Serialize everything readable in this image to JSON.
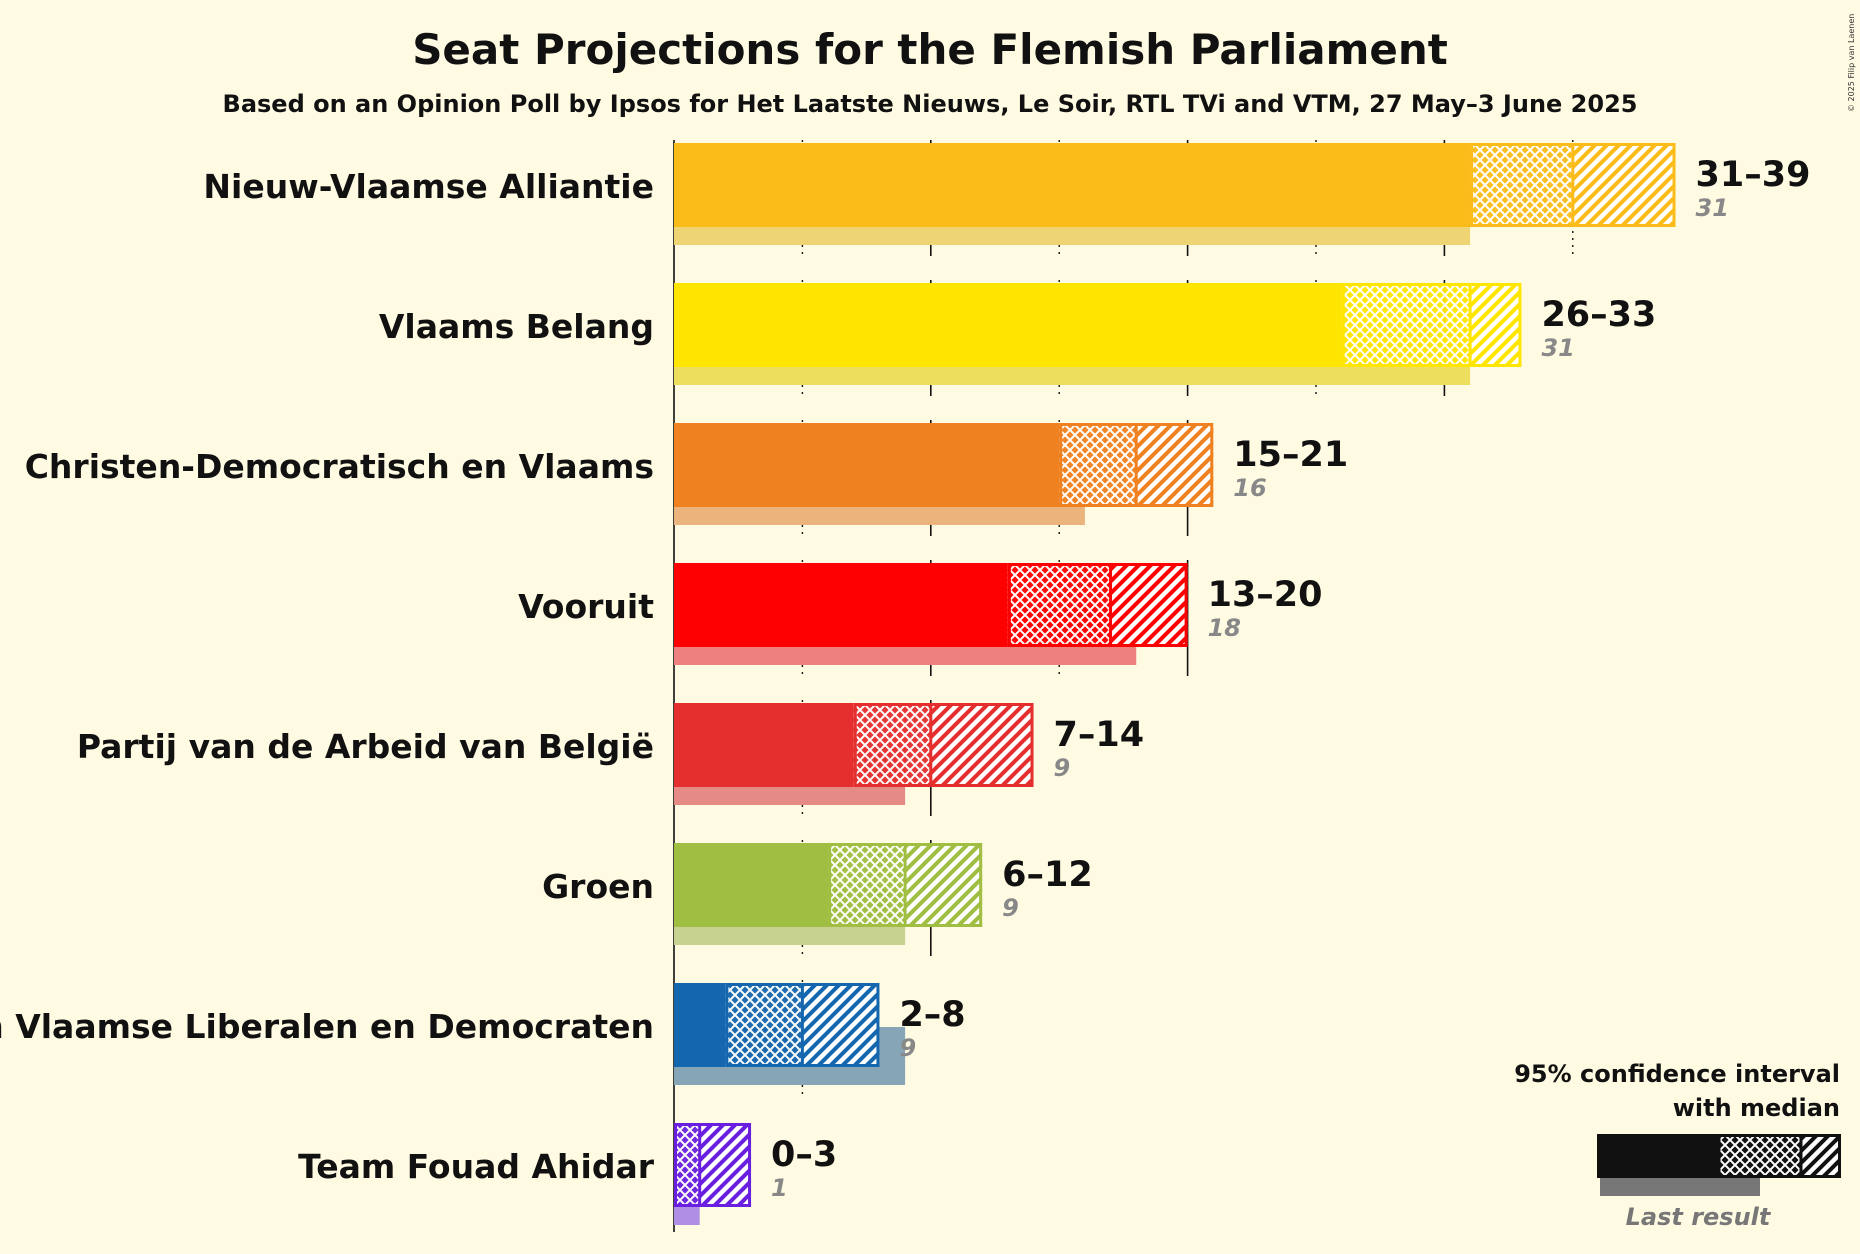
{
  "copyright": "© 2025 Filip van Laenen",
  "legend": {
    "line1": "95% confidence interval",
    "line2": "with median",
    "last_result": "Last result"
  },
  "chart_data": {
    "type": "bar",
    "orientation": "horizontal",
    "title": "Seat Projections for the Flemish Parliament",
    "subtitle": "Based on an Opinion Poll by Ipsos for Het Laatste Nieuws, Le Soir, RTL TVi and VTM, 27 May–3 June 2025",
    "xlim": [
      0,
      39
    ],
    "gridlines": {
      "solid_every": 10,
      "dotted_every": 5
    },
    "series": [
      {
        "name": "Nieuw-Vlaamse Alliantie",
        "low": 31,
        "median": 35,
        "high": 39,
        "range_label": "31–39",
        "last": 31,
        "last_label": "31",
        "color": "#FBBC19",
        "last_color": "#EFD474"
      },
      {
        "name": "Vlaams Belang",
        "low": 26,
        "median": 31,
        "high": 33,
        "range_label": "26–33",
        "last": 31,
        "last_label": "31",
        "color": "#FFE500",
        "last_color": "#EEDE5E"
      },
      {
        "name": "Christen-Democratisch en Vlaams",
        "low": 15,
        "median": 18,
        "high": 21,
        "range_label": "15–21",
        "last": 16,
        "last_label": "16",
        "color": "#F08120",
        "last_color": "#EAB47C"
      },
      {
        "name": "Vooruit",
        "low": 13,
        "median": 17,
        "high": 20,
        "range_label": "13–20",
        "last": 18,
        "last_label": "18",
        "color": "#FF0000",
        "last_color": "#EE8080"
      },
      {
        "name": "Partij van de Arbeid van België",
        "low": 7,
        "median": 10,
        "high": 14,
        "range_label": "7–14",
        "last": 9,
        "last_label": "9",
        "color": "#E52E2E",
        "last_color": "#E68A85"
      },
      {
        "name": "Groen",
        "low": 6,
        "median": 9,
        "high": 12,
        "range_label": "6–12",
        "last": 9,
        "last_label": "9",
        "color": "#A0BE41",
        "last_color": "#C7D190"
      },
      {
        "name": "Open Vlaamse Liberalen en Democraten",
        "low": 2,
        "median": 5,
        "high": 8,
        "range_label": "2–8",
        "last": 9,
        "last_label": "9",
        "color": "#1466AE",
        "last_color": "#86A6B8"
      },
      {
        "name": "Team Fouad Ahidar",
        "low": 0,
        "median": 1,
        "high": 3,
        "range_label": "0–3",
        "last": 1,
        "last_label": "1",
        "color": "#6A1FE0",
        "last_color": "#B08EE4"
      }
    ]
  }
}
